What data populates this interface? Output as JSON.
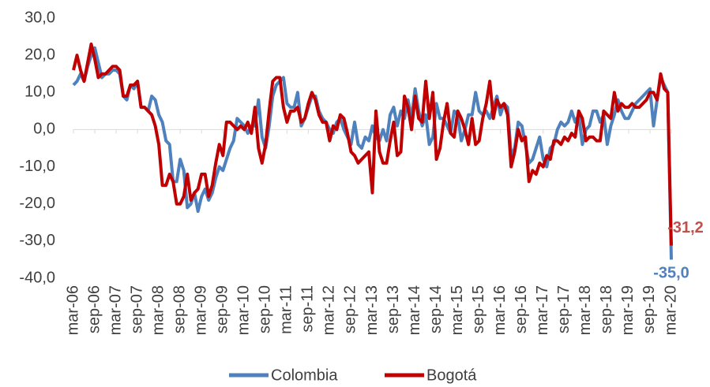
{
  "chart_data": {
    "type": "line",
    "categories": [
      "mar-06",
      null,
      null,
      null,
      null,
      null,
      "sep-06",
      null,
      null,
      null,
      null,
      null,
      "mar-07",
      null,
      null,
      null,
      null,
      null,
      "sep-07",
      null,
      null,
      null,
      null,
      null,
      "mar-08",
      null,
      null,
      null,
      null,
      null,
      "sep-08",
      null,
      null,
      null,
      null,
      null,
      "mar-09",
      null,
      null,
      null,
      null,
      null,
      "sep-09",
      null,
      null,
      null,
      null,
      null,
      "mar-10",
      null,
      null,
      null,
      null,
      null,
      "sep-10",
      null,
      null,
      null,
      null,
      null,
      "mar-11",
      null,
      null,
      null,
      null,
      null,
      "sep-11",
      null,
      null,
      null,
      null,
      null,
      "mar-12",
      null,
      null,
      null,
      null,
      null,
      "sep-12",
      null,
      null,
      null,
      null,
      null,
      "mar-13",
      null,
      null,
      null,
      null,
      null,
      "sep-13",
      null,
      null,
      null,
      null,
      null,
      "mar-14",
      null,
      null,
      null,
      null,
      null,
      "sep-14",
      null,
      null,
      null,
      null,
      null,
      "mar-15",
      null,
      null,
      null,
      null,
      null,
      "sep-15",
      null,
      null,
      null,
      null,
      null,
      "mar-16",
      null,
      null,
      null,
      null,
      null,
      "sep-16",
      null,
      null,
      null,
      null,
      null,
      "mar-17",
      null,
      null,
      null,
      null,
      null,
      "sep-17",
      null,
      null,
      null,
      null,
      null,
      "mar-18",
      null,
      null,
      null,
      null,
      null,
      "sep-18",
      null,
      null,
      null,
      null,
      null,
      "mar-19",
      null,
      null,
      null,
      null,
      null,
      "sep-19",
      null,
      null,
      null,
      null,
      null,
      "mar-20"
    ],
    "series": [
      {
        "name": "Colombia",
        "color": "#4f81bd",
        "label_color": "#4f81bd",
        "values": [
          12,
          13,
          15,
          13,
          17,
          20,
          22,
          18,
          14,
          15,
          15,
          16,
          16,
          15,
          9,
          8,
          12,
          11,
          13,
          6,
          6,
          5,
          9,
          8,
          4,
          2,
          -3,
          -4,
          -14,
          -14,
          -8,
          -11,
          -21,
          -20,
          -17,
          -22,
          -18,
          -16,
          -19,
          -17,
          -13,
          -10,
          -11,
          -8,
          -5,
          -3,
          3,
          2,
          1,
          -1,
          1,
          1,
          8,
          -2,
          -5,
          1,
          9,
          12,
          13,
          14,
          7,
          6,
          6,
          10,
          1,
          3,
          6,
          9,
          9,
          5,
          3,
          2,
          0,
          -1,
          2,
          3,
          0,
          -2,
          -4,
          2,
          -4,
          -5,
          -2,
          -3,
          1,
          -2,
          -3,
          0,
          -3,
          4,
          6,
          1,
          5,
          3,
          8,
          3,
          11,
          5,
          1,
          4,
          -4,
          -2,
          7,
          3,
          3,
          1,
          -1,
          5,
          4,
          -3,
          0,
          4,
          4,
          10,
          5,
          4,
          5,
          3,
          6,
          9,
          4,
          7,
          6,
          -7,
          -5,
          2,
          1,
          -4,
          -9,
          -8,
          -5,
          -2,
          -8,
          -10,
          -5,
          -4,
          0,
          2,
          1,
          2,
          5,
          2,
          4,
          -4,
          0,
          1,
          5,
          5,
          2,
          4,
          -4,
          1,
          4,
          8,
          5,
          3,
          3,
          5,
          7,
          8,
          9,
          10,
          11,
          1,
          8,
          14,
          12,
          10,
          -35
        ],
        "value_labels": [
          null,
          null,
          null,
          null,
          null,
          null,
          null,
          null,
          null,
          null,
          null,
          null,
          null,
          null,
          null,
          null,
          null,
          null,
          null,
          null,
          null,
          null,
          null,
          null,
          null,
          null,
          null,
          null,
          null,
          null,
          null,
          null,
          null,
          null,
          null,
          null,
          null,
          null,
          null,
          null,
          null,
          null,
          null,
          null,
          null,
          null,
          null,
          null,
          null,
          null,
          null,
          null,
          null,
          null,
          null,
          null,
          null,
          null,
          null,
          null,
          null,
          null,
          null,
          null,
          null,
          null,
          null,
          null,
          null,
          null,
          null,
          null,
          null,
          null,
          null,
          null,
          null,
          null,
          null,
          null,
          null,
          null,
          null,
          null,
          null,
          null,
          null,
          null,
          null,
          null,
          null,
          null,
          null,
          null,
          null,
          null,
          null,
          null,
          null,
          null,
          null,
          null,
          null,
          null,
          null,
          null,
          null,
          null,
          null,
          null,
          null,
          null,
          null,
          null,
          null,
          null,
          null,
          null,
          null,
          null,
          null,
          null,
          null,
          null,
          null,
          null,
          null,
          null,
          null,
          null,
          null,
          null,
          null,
          null,
          null,
          null,
          null,
          null,
          null,
          null,
          null,
          null,
          null,
          null,
          null,
          null,
          null,
          null,
          null,
          null,
          null,
          null,
          null,
          null,
          null,
          null,
          null,
          null,
          null,
          null,
          null,
          null,
          null,
          null,
          null,
          null,
          null,
          null,
          "-35,0"
        ]
      },
      {
        "name": "Bogotá",
        "color": "#c00000",
        "label_color": "#c0504d",
        "values": [
          16,
          20,
          16,
          13,
          18,
          23,
          19,
          14,
          15,
          15,
          16,
          17,
          17,
          16,
          9,
          9,
          12,
          12,
          13,
          6,
          6,
          5,
          4,
          1,
          -4,
          -15,
          -15,
          -12,
          -14,
          -20,
          -20,
          -18,
          -12,
          -19,
          -17,
          -16,
          -12,
          -12,
          -18,
          -15,
          -9,
          -4,
          -7,
          2,
          2,
          1,
          0,
          1,
          0,
          2,
          -1,
          6,
          -5,
          -9,
          -4,
          5,
          13,
          14,
          14,
          6,
          2,
          5,
          5,
          6,
          2,
          3,
          7,
          10,
          8,
          4,
          2,
          2,
          -3,
          1,
          0,
          4,
          3,
          -1,
          -6,
          -7,
          -9,
          -8,
          -7,
          -6,
          -17,
          5,
          -6,
          -9,
          -9,
          -3,
          2,
          -7,
          -6,
          9,
          6,
          0,
          9,
          3,
          2,
          13,
          3,
          10,
          -8,
          -5,
          2,
          7,
          -1,
          -2,
          5,
          3,
          0,
          -4,
          3,
          -4,
          -3,
          3,
          7,
          13,
          3,
          8,
          6,
          7,
          4,
          -10,
          -6,
          0,
          -3,
          -2,
          -14,
          -11,
          -12,
          -9,
          -10,
          -7,
          -8,
          -3,
          -3,
          -4,
          -2,
          -3,
          -1,
          -2,
          5,
          3,
          -3,
          -2,
          -2,
          -3,
          -3,
          5,
          4,
          3,
          10,
          5,
          7,
          6,
          6,
          7,
          6,
          6,
          7,
          8,
          10,
          10,
          8,
          15,
          11,
          10,
          -31.2
        ],
        "value_labels": [
          null,
          null,
          null,
          null,
          null,
          null,
          null,
          null,
          null,
          null,
          null,
          null,
          null,
          null,
          null,
          null,
          null,
          null,
          null,
          null,
          null,
          null,
          null,
          null,
          null,
          null,
          null,
          null,
          null,
          null,
          null,
          null,
          null,
          null,
          null,
          null,
          null,
          null,
          null,
          null,
          null,
          null,
          null,
          null,
          null,
          null,
          null,
          null,
          null,
          null,
          null,
          null,
          null,
          null,
          null,
          null,
          null,
          null,
          null,
          null,
          null,
          null,
          null,
          null,
          null,
          null,
          null,
          null,
          null,
          null,
          null,
          null,
          null,
          null,
          null,
          null,
          null,
          null,
          null,
          null,
          null,
          null,
          null,
          null,
          null,
          null,
          null,
          null,
          null,
          null,
          null,
          null,
          null,
          null,
          null,
          null,
          null,
          null,
          null,
          null,
          null,
          null,
          null,
          null,
          null,
          null,
          null,
          null,
          null,
          null,
          null,
          null,
          null,
          null,
          null,
          null,
          null,
          null,
          null,
          null,
          null,
          null,
          null,
          null,
          null,
          null,
          null,
          null,
          null,
          null,
          null,
          null,
          null,
          null,
          null,
          null,
          null,
          null,
          null,
          null,
          null,
          null,
          null,
          null,
          null,
          null,
          null,
          null,
          null,
          null,
          null,
          null,
          null,
          null,
          null,
          null,
          null,
          null,
          null,
          null,
          null,
          null,
          null,
          null,
          null,
          null,
          null,
          null,
          "-31,2"
        ]
      }
    ],
    "ylim": [
      -40,
      30
    ],
    "yticks": [
      {
        "value": -40,
        "label": "-40,0"
      },
      {
        "value": -30,
        "label": "-30,0"
      },
      {
        "value": -20,
        "label": "-20,0"
      },
      {
        "value": -10,
        "label": "-10,0"
      },
      {
        "value": 0,
        "label": "0,0"
      },
      {
        "value": 10,
        "label": "10,0"
      },
      {
        "value": 20,
        "label": "20,0"
      },
      {
        "value": 30,
        "label": "30,0"
      }
    ],
    "grid": false,
    "legend": "bottom"
  }
}
